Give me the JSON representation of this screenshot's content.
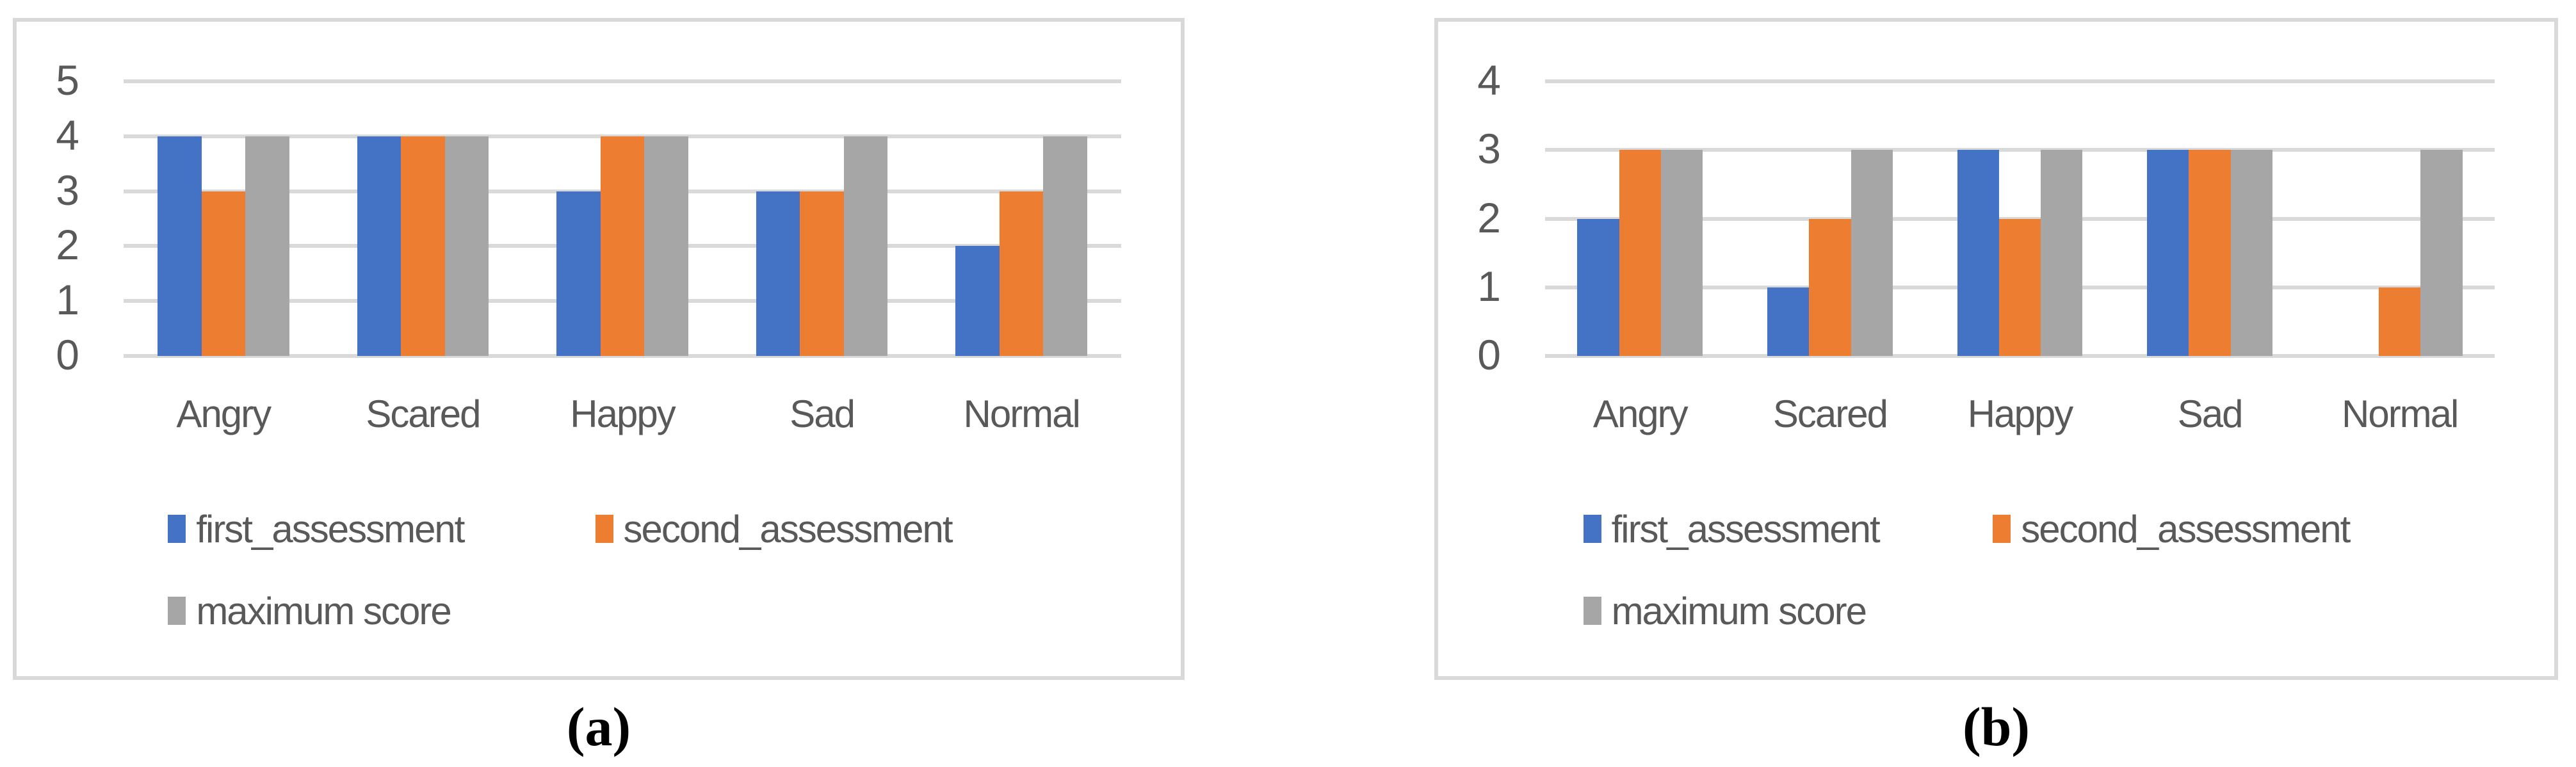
{
  "colors": {
    "blue": "#4472C4",
    "orange": "#ED7D31",
    "gray": "#A6A6A6",
    "gridline": "#D9D9D9",
    "panel_border": "#D9D9D9",
    "axis_text": "#595959",
    "caption_text": "#000000"
  },
  "figures": [
    {
      "caption": "(a)",
      "chart_index": 0
    },
    {
      "caption": "(b)",
      "chart_index": 1
    }
  ],
  "chart_data": [
    {
      "type": "bar",
      "title": "",
      "categories": [
        "Angry",
        "Scared",
        "Happy",
        "Sad",
        "Normal"
      ],
      "series": [
        {
          "name": "first_assessment",
          "color_key": "blue",
          "values": [
            4,
            4,
            3,
            3,
            2
          ]
        },
        {
          "name": "second_assessment",
          "color_key": "orange",
          "values": [
            3,
            4,
            4,
            3,
            3
          ]
        },
        {
          "name": "maximum score",
          "color_key": "gray",
          "values": [
            4,
            4,
            4,
            4,
            4
          ]
        }
      ],
      "xlabel": "",
      "ylabel": "",
      "ylim": [
        0,
        5
      ],
      "yticks": [
        5,
        4,
        3,
        2,
        1,
        0
      ],
      "grid": true,
      "legend_position": "bottom",
      "legend_rows": [
        [
          "first_assessment",
          "second_assessment"
        ],
        [
          "maximum score"
        ]
      ]
    },
    {
      "type": "bar",
      "title": "",
      "categories": [
        "Angry",
        "Scared",
        "Happy",
        "Sad",
        "Normal"
      ],
      "series": [
        {
          "name": "first_assessment",
          "color_key": "blue",
          "values": [
            2,
            1,
            3,
            3,
            0
          ]
        },
        {
          "name": "second_assessment",
          "color_key": "orange",
          "values": [
            3,
            2,
            2,
            3,
            1
          ]
        },
        {
          "name": "maximum score",
          "color_key": "gray",
          "values": [
            3,
            3,
            3,
            3,
            3
          ]
        }
      ],
      "xlabel": "",
      "ylabel": "",
      "ylim": [
        0,
        4
      ],
      "yticks": [
        4,
        3,
        2,
        1,
        0
      ],
      "grid": true,
      "legend_position": "bottom",
      "legend_rows": [
        [
          "first_assessment",
          "second_assessment"
        ],
        [
          "maximum score"
        ]
      ]
    }
  ]
}
